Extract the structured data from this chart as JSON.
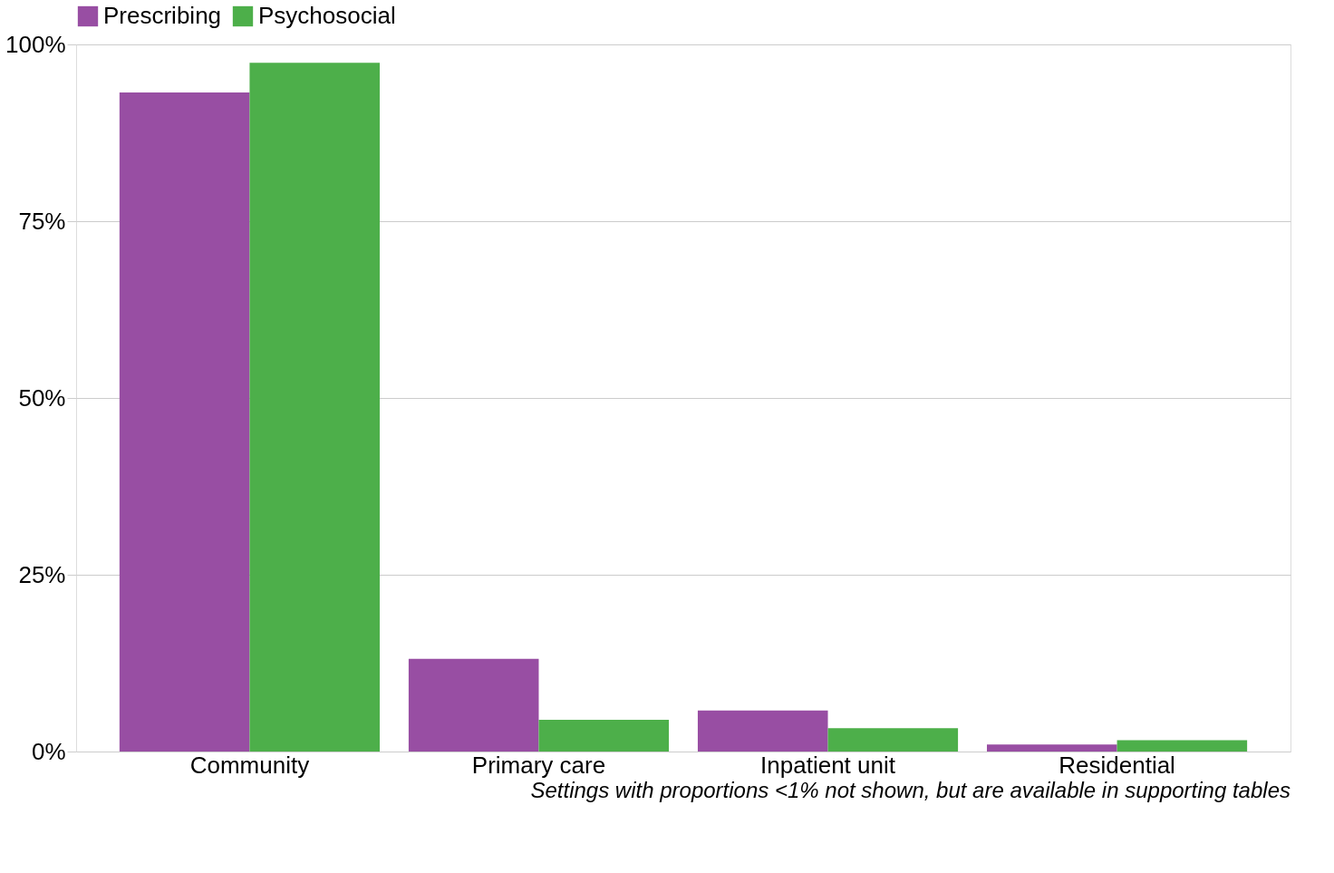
{
  "chart_data": {
    "type": "bar",
    "categories": [
      "Community",
      "Primary care",
      "Inpatient unit",
      "Residential"
    ],
    "series": [
      {
        "name": "Prescribing",
        "color": "#984ea3",
        "values": [
          93.2,
          13.1,
          5.8,
          1.0
        ]
      },
      {
        "name": "Psychosocial",
        "color": "#4daf4a",
        "values": [
          97.4,
          4.5,
          3.3,
          1.6
        ]
      }
    ],
    "ylim": [
      0,
      100
    ],
    "yticks": [
      {
        "value": 0,
        "label": "0%"
      },
      {
        "value": 25,
        "label": "25%"
      },
      {
        "value": 50,
        "label": "50%"
      },
      {
        "value": 75,
        "label": "75%"
      },
      {
        "value": 100,
        "label": "100%"
      }
    ],
    "grid": "y",
    "legend": "top",
    "annotations": [
      "Settings with proportions <1% not shown, but are available in supporting tables"
    ]
  }
}
